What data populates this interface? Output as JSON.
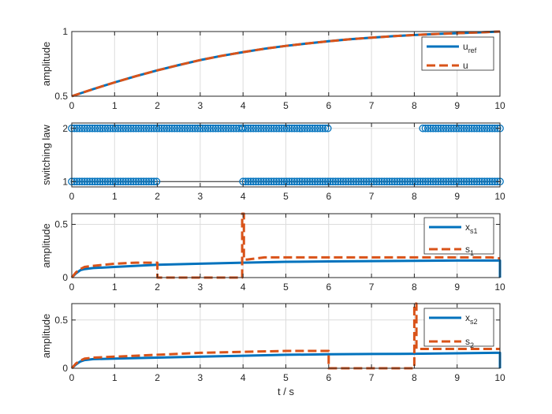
{
  "colors": {
    "blue": "#0072BD",
    "orange": "#D95319",
    "axis": "#262626",
    "grid": "#DCDCDC"
  },
  "chart_data": [
    {
      "type": "line",
      "ylabel": "amplitude",
      "xlim": [
        0,
        10
      ],
      "ylim": [
        0.5,
        1
      ],
      "xticks": [
        "0",
        "1",
        "2",
        "3",
        "4",
        "5",
        "6",
        "7",
        "8",
        "9",
        "10"
      ],
      "yticks": [
        {
          "v": 0.5,
          "label": "0.5"
        },
        {
          "v": 1,
          "label": "1"
        }
      ],
      "grid": true,
      "legend_location": "top-right",
      "legend": [
        {
          "main": "u",
          "sub": "ref",
          "style": "solid"
        },
        {
          "main": "u",
          "sub": "",
          "style": "dashed"
        }
      ],
      "series": [
        {
          "name": "u_ref",
          "style": "solid",
          "color": "blue",
          "x": [
            0,
            0.5,
            1,
            1.5,
            2,
            2.5,
            3,
            3.5,
            4,
            4.5,
            5,
            5.5,
            6,
            6.5,
            7,
            7.5,
            8,
            8.5,
            9,
            9.5,
            10
          ],
          "y": [
            0.5,
            0.555,
            0.607,
            0.655,
            0.7,
            0.741,
            0.779,
            0.812,
            0.841,
            0.867,
            0.889,
            0.908,
            0.925,
            0.94,
            0.953,
            0.964,
            0.973,
            0.981,
            0.987,
            0.993,
            1.0
          ]
        },
        {
          "name": "u",
          "style": "dashed",
          "color": "orange",
          "x": [
            0,
            0.5,
            1,
            1.5,
            2,
            2.5,
            3,
            3.5,
            4,
            4.5,
            5,
            5.5,
            6,
            6.5,
            7,
            7.5,
            8,
            8.5,
            9,
            9.5,
            10
          ],
          "y": [
            0.5,
            0.555,
            0.607,
            0.655,
            0.7,
            0.741,
            0.779,
            0.812,
            0.841,
            0.867,
            0.889,
            0.908,
            0.925,
            0.94,
            0.953,
            0.964,
            0.973,
            0.981,
            0.987,
            0.993,
            1.0
          ]
        }
      ]
    },
    {
      "type": "scatter",
      "ylabel": "switching law",
      "xlim": [
        0,
        10
      ],
      "ylim": [
        0.9,
        2.1
      ],
      "xticks": [
        "0",
        "1",
        "2",
        "3",
        "4",
        "5",
        "6",
        "7",
        "8",
        "9",
        "10"
      ],
      "yticks": [
        {
          "v": 1,
          "label": "1"
        },
        {
          "v": 2,
          "label": "2"
        }
      ],
      "grid": true,
      "line_segments": [
        [
          [
            0,
            1
          ],
          [
            10,
            1
          ]
        ]
      ],
      "marker_runs": [
        {
          "y": 1,
          "from": 0,
          "to": 2,
          "step": 0.06
        },
        {
          "y": 2,
          "from": 0,
          "to": 4,
          "step": 0.06
        },
        {
          "y": 1,
          "from": 4,
          "to": 10,
          "step": 0.06
        },
        {
          "y": 2,
          "from": 4,
          "to": 6,
          "step": 0.06
        },
        {
          "y": 2,
          "from": 8.2,
          "to": 10,
          "step": 0.06
        }
      ]
    },
    {
      "type": "line",
      "ylabel": "amplitude",
      "xlim": [
        0,
        10
      ],
      "ylim": [
        0,
        0.6
      ],
      "xticks": [
        "0",
        "1",
        "2",
        "3",
        "4",
        "5",
        "6",
        "7",
        "8",
        "9",
        "10"
      ],
      "yticks": [
        {
          "v": 0,
          "label": "0"
        },
        {
          "v": 0.5,
          "label": "0.5"
        }
      ],
      "grid": true,
      "legend_location": "top-right",
      "legend": [
        {
          "main": "x",
          "sub": "s1",
          "style": "solid"
        },
        {
          "main": "s",
          "sub": "1",
          "style": "dashed"
        }
      ],
      "series": [
        {
          "name": "x_s1",
          "style": "solid",
          "color": "blue",
          "x": [
            0,
            0.1,
            0.2,
            0.3,
            0.5,
            1,
            2,
            3,
            4,
            5,
            6,
            7,
            8,
            9,
            9.9,
            10,
            10
          ],
          "y": [
            0,
            0.04,
            0.07,
            0.08,
            0.09,
            0.1,
            0.12,
            0.13,
            0.14,
            0.148,
            0.152,
            0.155,
            0.158,
            0.16,
            0.16,
            0.16,
            0
          ]
        },
        {
          "name": "s_1",
          "style": "dashed",
          "color": "orange",
          "x": [
            0,
            0.1,
            0.2,
            0.3,
            0.5,
            1,
            1.5,
            1.99,
            2,
            2,
            3,
            3.98,
            3.98,
            4.0,
            4.02,
            4.02,
            4.1,
            4.5,
            5,
            6,
            7,
            8,
            9,
            9.8,
            10
          ],
          "y": [
            0,
            0.05,
            0.08,
            0.1,
            0.11,
            0.13,
            0.14,
            0.14,
            0.14,
            0.0,
            0.0,
            0.0,
            0.6,
            0.6,
            0.6,
            0.17,
            0.17,
            0.19,
            0.19,
            0.19,
            0.19,
            0.19,
            0.19,
            0.19,
            0.18
          ]
        }
      ]
    },
    {
      "type": "line",
      "ylabel": "amplitude",
      "xlabel": "t / s",
      "xlim": [
        0,
        10
      ],
      "ylim": [
        0,
        0.67
      ],
      "xticks": [
        "0",
        "1",
        "2",
        "3",
        "4",
        "5",
        "6",
        "7",
        "8",
        "9",
        "10"
      ],
      "yticks": [
        {
          "v": 0,
          "label": "0"
        },
        {
          "v": 0.5,
          "label": "0.5"
        }
      ],
      "grid": true,
      "legend_location": "top-right",
      "legend": [
        {
          "main": "x",
          "sub": "s2",
          "style": "solid"
        },
        {
          "main": "s",
          "sub": "2",
          "style": "dashed"
        }
      ],
      "series": [
        {
          "name": "x_s2",
          "style": "solid",
          "color": "blue",
          "x": [
            0,
            0.1,
            0.2,
            0.3,
            0.5,
            1,
            2,
            3,
            4,
            5,
            6,
            7,
            8,
            9,
            9.9,
            10,
            10
          ],
          "y": [
            0,
            0.04,
            0.07,
            0.085,
            0.095,
            0.1,
            0.11,
            0.12,
            0.13,
            0.14,
            0.145,
            0.148,
            0.15,
            0.155,
            0.16,
            0.16,
            0
          ]
        },
        {
          "name": "s_2",
          "style": "dashed",
          "color": "orange",
          "x": [
            0,
            0.1,
            0.2,
            0.3,
            0.5,
            1,
            2,
            3,
            4,
            5,
            5.99,
            6,
            6,
            7,
            7.99,
            8,
            8,
            8.05,
            8.05,
            8.5,
            9,
            9.5,
            10
          ],
          "y": [
            0,
            0.05,
            0.08,
            0.1,
            0.11,
            0.12,
            0.14,
            0.16,
            0.17,
            0.18,
            0.18,
            0.18,
            0.0,
            0.0,
            0.0,
            0.0,
            0.67,
            0.67,
            0.2,
            0.2,
            0.2,
            0.2,
            0.2
          ]
        }
      ]
    }
  ]
}
